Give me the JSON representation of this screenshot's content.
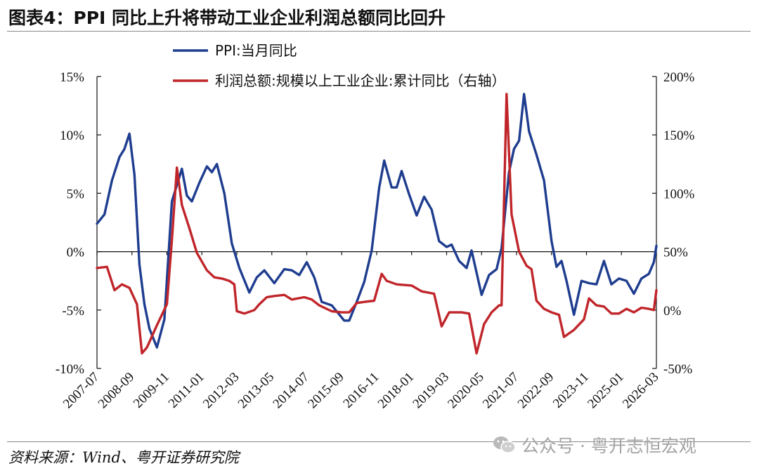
{
  "title": "图表4：PPI 同比上升将带动工业企业利润总额同比回升",
  "source": "资料来源：Wind、粤开证券研究院",
  "watermark": "公众号 · 粤开志恒宏观",
  "chart_data": {
    "type": "line",
    "title": "",
    "xlabel": "",
    "ylabel": "",
    "ylim_left": [
      -10,
      15
    ],
    "ylim_right": [
      -50,
      200
    ],
    "y_ticks_left": [
      "15%",
      "10%",
      "5%",
      "0%",
      "-5%",
      "-10%"
    ],
    "y_ticks_left_values": [
      15,
      10,
      5,
      0,
      -5,
      -10
    ],
    "y_ticks_right": [
      "200%",
      "150%",
      "100%",
      "50%",
      "0%",
      "-50%"
    ],
    "y_ticks_right_values": [
      200,
      150,
      100,
      50,
      0,
      -50
    ],
    "x_ticks": [
      "2007-07",
      "2008-09",
      "2009-11",
      "2011-01",
      "2012-03",
      "2013-05",
      "2014-07",
      "2015-09",
      "2016-11",
      "2018-01",
      "2019-03",
      "2020-05",
      "2021-07",
      "2022-09",
      "2023-11",
      "2025-01",
      "2026-03"
    ],
    "x_start": "2007-07",
    "x_end": "2026-03",
    "legend_position": "top-center",
    "grid": false,
    "series": [
      {
        "name": "PPI:当月同比",
        "axis": "left",
        "color": "#1f3d8f",
        "points": [
          [
            "2007-07",
            2.4
          ],
          [
            "2007-10",
            3.2
          ],
          [
            "2008-01",
            6.1
          ],
          [
            "2008-04",
            8.1
          ],
          [
            "2008-06",
            8.8
          ],
          [
            "2008-08",
            10.1
          ],
          [
            "2008-10",
            6.6
          ],
          [
            "2008-12",
            -1.1
          ],
          [
            "2009-02",
            -4.5
          ],
          [
            "2009-04",
            -6.6
          ],
          [
            "2009-07",
            -8.2
          ],
          [
            "2009-10",
            -5.8
          ],
          [
            "2010-01",
            4.3
          ],
          [
            "2010-05",
            7.1
          ],
          [
            "2010-07",
            4.8
          ],
          [
            "2010-09",
            4.3
          ],
          [
            "2010-12",
            5.9
          ],
          [
            "2011-03",
            7.3
          ],
          [
            "2011-05",
            6.8
          ],
          [
            "2011-07",
            7.5
          ],
          [
            "2011-10",
            5.0
          ],
          [
            "2012-01",
            0.7
          ],
          [
            "2012-04",
            -1.4
          ],
          [
            "2012-08",
            -3.5
          ],
          [
            "2012-11",
            -2.2
          ],
          [
            "2013-02",
            -1.6
          ],
          [
            "2013-06",
            -2.7
          ],
          [
            "2013-10",
            -1.5
          ],
          [
            "2014-01",
            -1.6
          ],
          [
            "2014-04",
            -2.0
          ],
          [
            "2014-07",
            -0.9
          ],
          [
            "2014-10",
            -2.2
          ],
          [
            "2015-01",
            -4.3
          ],
          [
            "2015-05",
            -4.6
          ],
          [
            "2015-10",
            -5.9
          ],
          [
            "2015-12",
            -5.9
          ],
          [
            "2016-03",
            -4.3
          ],
          [
            "2016-06",
            -2.6
          ],
          [
            "2016-09",
            0.1
          ],
          [
            "2016-12",
            5.5
          ],
          [
            "2017-02",
            7.8
          ],
          [
            "2017-05",
            5.5
          ],
          [
            "2017-07",
            5.5
          ],
          [
            "2017-09",
            6.9
          ],
          [
            "2017-12",
            4.9
          ],
          [
            "2018-03",
            3.1
          ],
          [
            "2018-06",
            4.7
          ],
          [
            "2018-09",
            3.6
          ],
          [
            "2018-12",
            0.9
          ],
          [
            "2019-03",
            0.4
          ],
          [
            "2019-05",
            0.6
          ],
          [
            "2019-08",
            -0.8
          ],
          [
            "2019-11",
            -1.4
          ],
          [
            "2020-01",
            0.1
          ],
          [
            "2020-05",
            -3.7
          ],
          [
            "2020-08",
            -2.0
          ],
          [
            "2020-11",
            -1.5
          ],
          [
            "2021-01",
            0.3
          ],
          [
            "2021-04",
            6.8
          ],
          [
            "2021-06",
            8.8
          ],
          [
            "2021-08",
            9.5
          ],
          [
            "2021-10",
            13.5
          ],
          [
            "2021-12",
            10.3
          ],
          [
            "2022-03",
            8.3
          ],
          [
            "2022-06",
            6.1
          ],
          [
            "2022-09",
            0.9
          ],
          [
            "2022-11",
            -1.3
          ],
          [
            "2023-01",
            -0.8
          ],
          [
            "2023-03",
            -2.5
          ],
          [
            "2023-06",
            -5.4
          ],
          [
            "2023-09",
            -2.5
          ],
          [
            "2023-12",
            -2.7
          ],
          [
            "2024-03",
            -2.8
          ],
          [
            "2024-06",
            -0.8
          ],
          [
            "2024-09",
            -2.8
          ],
          [
            "2024-12",
            -2.3
          ],
          [
            "2025-03",
            -2.5
          ],
          [
            "2025-06",
            -3.6
          ],
          [
            "2025-09",
            -2.3
          ],
          [
            "2025-12",
            -1.9
          ],
          [
            "2026-02",
            -0.9
          ],
          [
            "2026-03",
            0.5
          ]
        ]
      },
      {
        "name": "利润总额:规模以上工业企业:累计同比（右轴）",
        "axis": "right",
        "color": "#c0252a",
        "points": [
          [
            "2007-07",
            36
          ],
          [
            "2007-11",
            37
          ],
          [
            "2008-02",
            17
          ],
          [
            "2008-05",
            22
          ],
          [
            "2008-08",
            19
          ],
          [
            "2008-11",
            5
          ],
          [
            "2009-01",
            -37
          ],
          [
            "2009-03",
            -32
          ],
          [
            "2009-07",
            -13
          ],
          [
            "2009-11",
            5
          ],
          [
            "2010-01",
            60
          ],
          [
            "2010-03",
            122
          ],
          [
            "2010-05",
            90
          ],
          [
            "2010-08",
            70
          ],
          [
            "2010-11",
            49
          ],
          [
            "2011-03",
            34
          ],
          [
            "2011-06",
            28
          ],
          [
            "2011-09",
            27
          ],
          [
            "2011-12",
            25
          ],
          [
            "2012-02",
            22
          ],
          [
            "2012-03",
            -1
          ],
          [
            "2012-06",
            -3
          ],
          [
            "2012-10",
            0
          ],
          [
            "2012-12",
            5
          ],
          [
            "2013-03",
            11
          ],
          [
            "2013-06",
            12
          ],
          [
            "2013-10",
            13
          ],
          [
            "2014-01",
            9
          ],
          [
            "2014-06",
            11
          ],
          [
            "2014-09",
            9
          ],
          [
            "2014-12",
            4
          ],
          [
            "2015-05",
            -1
          ],
          [
            "2015-09",
            -2
          ],
          [
            "2015-12",
            -2
          ],
          [
            "2016-03",
            6
          ],
          [
            "2016-06",
            7
          ],
          [
            "2016-10",
            8
          ],
          [
            "2017-01",
            31
          ],
          [
            "2017-03",
            25
          ],
          [
            "2017-07",
            22
          ],
          [
            "2018-01",
            21
          ],
          [
            "2018-05",
            16
          ],
          [
            "2018-10",
            14
          ],
          [
            "2019-01",
            -14
          ],
          [
            "2019-04",
            -2
          ],
          [
            "2019-09",
            -2
          ],
          [
            "2019-12",
            -3
          ],
          [
            "2020-03",
            -37
          ],
          [
            "2020-06",
            -12
          ],
          [
            "2020-09",
            -2
          ],
          [
            "2020-12",
            4
          ],
          [
            "2021-01",
            4
          ],
          [
            "2021-03",
            185
          ],
          [
            "2021-05",
            82
          ],
          [
            "2021-08",
            50
          ],
          [
            "2021-11",
            38
          ],
          [
            "2022-01",
            35
          ],
          [
            "2022-03",
            8
          ],
          [
            "2022-06",
            1
          ],
          [
            "2022-09",
            -2
          ],
          [
            "2022-12",
            -4
          ],
          [
            "2023-02",
            -23
          ],
          [
            "2023-06",
            -17
          ],
          [
            "2023-10",
            -8
          ],
          [
            "2023-12",
            10
          ],
          [
            "2024-03",
            4
          ],
          [
            "2024-06",
            3
          ],
          [
            "2024-09",
            -3
          ],
          [
            "2024-12",
            -3
          ],
          [
            "2025-03",
            1
          ],
          [
            "2025-06",
            -2
          ],
          [
            "2025-09",
            2
          ],
          [
            "2025-12",
            1
          ],
          [
            "2026-02",
            0
          ],
          [
            "2026-03",
            17
          ]
        ]
      }
    ]
  }
}
